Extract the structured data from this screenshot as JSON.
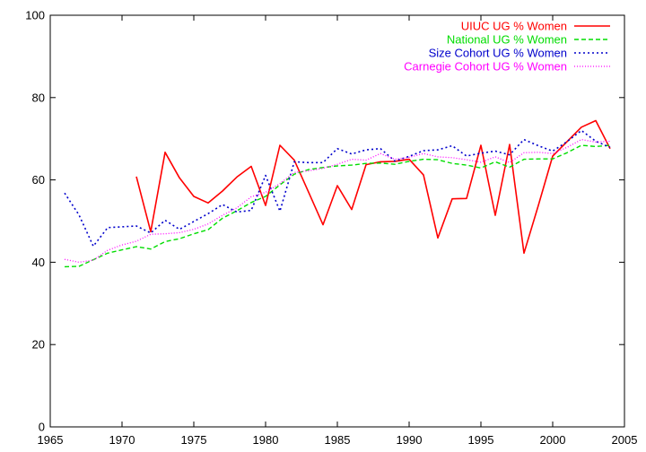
{
  "chart_data": {
    "type": "line",
    "title": "",
    "xlabel": "",
    "ylabel": "",
    "xlim": [
      1965,
      2005
    ],
    "ylim": [
      0,
      100
    ],
    "x_ticks": [
      1965,
      1970,
      1975,
      1980,
      1985,
      1990,
      1995,
      2000,
      2005
    ],
    "y_ticks": [
      0,
      20,
      40,
      60,
      80,
      100
    ],
    "grid": false,
    "legend_position": "top-right",
    "series": [
      {
        "name": "UIUC UG % Women",
        "color": "#ff0000",
        "style": "solid",
        "x": [
          1971,
          1972,
          1973,
          1974,
          1975,
          1976,
          1977,
          1978,
          1979,
          1980,
          1981,
          1982,
          1983,
          1984,
          1985,
          1986,
          1987,
          1988,
          1989,
          1990,
          1991,
          1992,
          1993,
          1994,
          1995,
          1996,
          1997,
          1998,
          1999,
          2000,
          2001,
          2002,
          2003,
          2004
        ],
        "values": [
          60.8,
          47.4,
          66.7,
          60.5,
          56.0,
          54.4,
          57.3,
          60.7,
          63.3,
          53.8,
          68.4,
          64.8,
          57.0,
          49.1,
          58.6,
          52.8,
          63.7,
          64.4,
          64.5,
          65.0,
          61.2,
          45.9,
          55.4,
          55.5,
          68.4,
          51.4,
          68.6,
          42.2,
          53.8,
          65.8,
          69.3,
          72.8,
          74.4,
          67.6
        ]
      },
      {
        "name": "National UG % Women",
        "color": "#00dd00",
        "style": "dashed",
        "x": [
          1966,
          1967,
          1968,
          1969,
          1970,
          1971,
          1972,
          1973,
          1974,
          1975,
          1976,
          1977,
          1978,
          1979,
          1980,
          1981,
          1982,
          1983,
          1984,
          1985,
          1986,
          1987,
          1988,
          1989,
          1990,
          1991,
          1992,
          1993,
          1994,
          1995,
          1996,
          1997,
          1998,
          1999,
          2000,
          2001,
          2002,
          2003,
          2004
        ],
        "values": [
          38.9,
          39.0,
          40.6,
          42.2,
          43.0,
          43.8,
          43.2,
          45.0,
          45.7,
          46.9,
          47.9,
          50.7,
          52.5,
          54.5,
          56.0,
          58.8,
          61.4,
          62.5,
          63.0,
          63.4,
          63.6,
          64.0,
          64.1,
          63.8,
          64.5,
          65.0,
          64.9,
          64.0,
          63.6,
          62.9,
          64.4,
          63.1,
          65.0,
          65.1,
          65.1,
          66.6,
          68.4,
          68.1,
          68.4
        ]
      },
      {
        "name": "Size Cohort UG % Women",
        "color": "#0000cc",
        "style": "dotted",
        "x": [
          1966,
          1967,
          1968,
          1969,
          1970,
          1971,
          1972,
          1973,
          1974,
          1975,
          1976,
          1977,
          1978,
          1979,
          1980,
          1981,
          1982,
          1983,
          1984,
          1985,
          1986,
          1987,
          1988,
          1989,
          1990,
          1991,
          1992,
          1993,
          1994,
          1995,
          1996,
          1997,
          1998,
          1999,
          2000,
          2001,
          2002,
          2003,
          2004
        ],
        "values": [
          56.8,
          51.5,
          43.9,
          48.4,
          48.6,
          48.8,
          47.1,
          50.2,
          48.0,
          49.9,
          51.8,
          54.0,
          52.2,
          52.6,
          61.1,
          52.4,
          64.4,
          64.2,
          64.2,
          67.6,
          66.3,
          67.3,
          67.6,
          64.6,
          65.7,
          67.1,
          67.3,
          68.3,
          65.8,
          66.5,
          67.0,
          66.1,
          69.8,
          68.3,
          67.0,
          69.3,
          72.0,
          69.4,
          67.9
        ]
      },
      {
        "name": "Carnegie Cohort UG % Women",
        "color": "#ff00ff",
        "style": "dotted-fine",
        "x": [
          1966,
          1967,
          1968,
          1969,
          1970,
          1971,
          1972,
          1973,
          1974,
          1975,
          1976,
          1977,
          1978,
          1979,
          1980,
          1981,
          1982,
          1983,
          1984,
          1985,
          1986,
          1987,
          1988,
          1989,
          1990,
          1991,
          1992,
          1993,
          1994,
          1995,
          1996,
          1997,
          1998,
          1999,
          2000,
          2001,
          2002,
          2003,
          2004
        ],
        "values": [
          40.7,
          40.0,
          40.5,
          42.9,
          44.2,
          45.1,
          46.8,
          46.9,
          47.2,
          48.0,
          49.3,
          51.4,
          53.2,
          55.9,
          57.0,
          59.1,
          61.8,
          62.2,
          62.8,
          63.8,
          65.0,
          64.8,
          66.4,
          65.0,
          65.5,
          66.4,
          65.6,
          65.4,
          64.9,
          64.3,
          65.6,
          64.2,
          66.6,
          66.7,
          66.4,
          67.9,
          69.8,
          69.2,
          69.4
        ]
      }
    ]
  }
}
